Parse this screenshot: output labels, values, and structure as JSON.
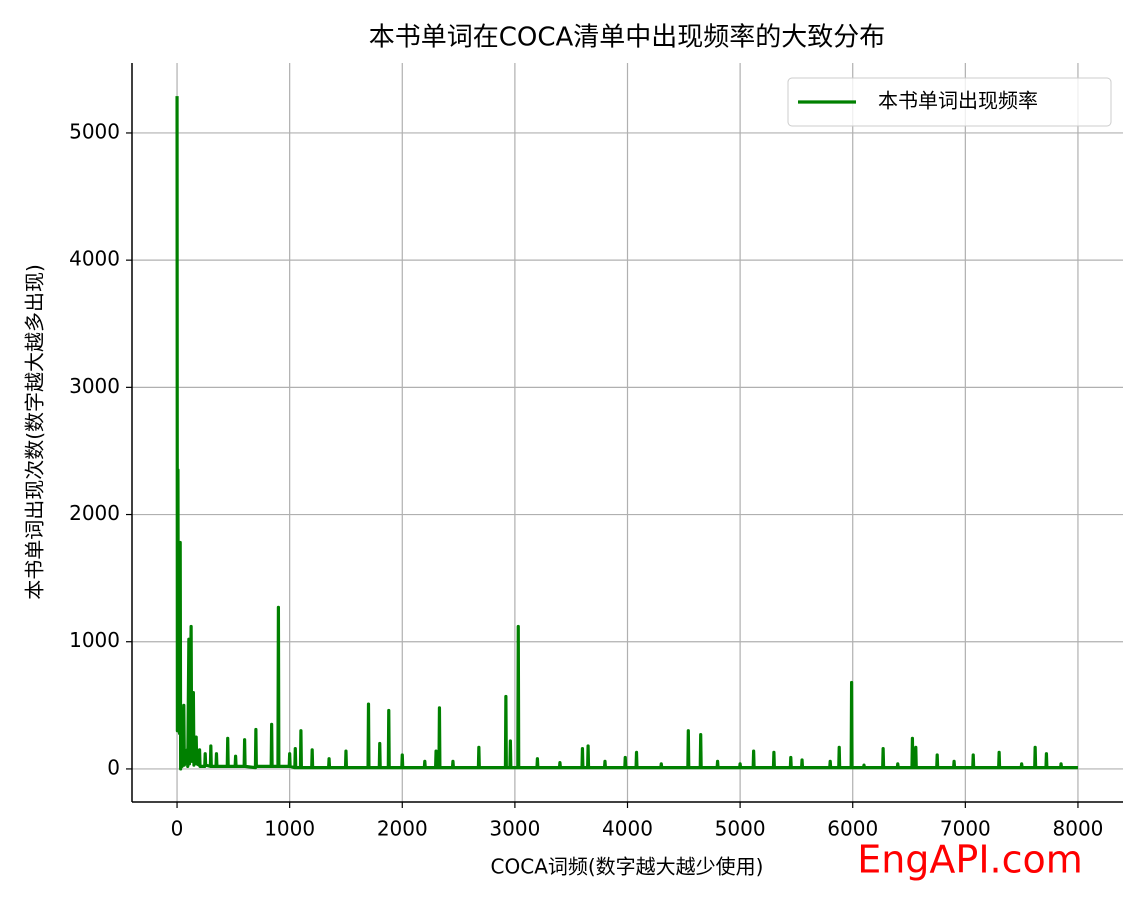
{
  "chart_data": {
    "type": "line",
    "title": "本书单词在COCA清单中出现频率的大致分布",
    "xlabel": "COCA词频(数字越大越少使用)",
    "ylabel": "本书单词出现次数(数字越大越多出现)",
    "annotation": "EngAPI.com",
    "legend": "upper right",
    "grid": true,
    "xlim": [
      -400,
      8400
    ],
    "ylim": [
      -260,
      5550
    ],
    "xticks": [
      0,
      1000,
      2000,
      3000,
      4000,
      5000,
      6000,
      7000,
      8000
    ],
    "yticks": [
      0,
      1000,
      2000,
      3000,
      4000,
      5000
    ],
    "x": [
      0,
      3,
      8,
      12,
      18,
      22,
      28,
      32,
      40,
      45,
      60,
      65,
      90,
      95,
      105,
      110,
      125,
      130,
      145,
      150,
      170,
      175,
      196,
      200,
      204,
      246,
      250,
      254,
      296,
      300,
      304,
      346,
      350,
      354,
      446,
      450,
      454,
      516,
      520,
      524,
      596,
      600,
      604,
      696,
      700,
      704,
      836,
      840,
      844,
      896,
      900,
      904,
      996,
      1000,
      1004,
      1046,
      1050,
      1054,
      1096,
      1100,
      1104,
      1196,
      1200,
      1204,
      1346,
      1350,
      1354,
      1496,
      1500,
      1504,
      1696,
      1700,
      1704,
      1796,
      1800,
      1804,
      1876,
      1880,
      1884,
      1996,
      2000,
      2004,
      2196,
      2200,
      2204,
      2296,
      2300,
      2304,
      2326,
      2330,
      2334,
      2446,
      2450,
      2454,
      2676,
      2680,
      2684,
      2916,
      2920,
      2924,
      2956,
      2960,
      2964,
      3026,
      3030,
      3034,
      3196,
      3200,
      3204,
      3396,
      3400,
      3404,
      3596,
      3600,
      3604,
      3646,
      3650,
      3654,
      3796,
      3800,
      3804,
      3976,
      3980,
      3984,
      4076,
      4080,
      4084,
      4296,
      4300,
      4304,
      4536,
      4540,
      4544,
      4646,
      4650,
      4654,
      4796,
      4800,
      4804,
      4996,
      5000,
      5004,
      5116,
      5120,
      5124,
      5296,
      5300,
      5304,
      5446,
      5450,
      5454,
      5546,
      5550,
      5554,
      5796,
      5800,
      5804,
      5876,
      5880,
      5884,
      5986,
      5990,
      5994,
      6096,
      6100,
      6104,
      6266,
      6270,
      6274,
      6396,
      6400,
      6404,
      6526,
      6530,
      6534,
      6556,
      6560,
      6564,
      6746,
      6750,
      6754,
      6896,
      6900,
      6904,
      7066,
      7070,
      7074,
      7296,
      7300,
      7304,
      7496,
      7500,
      7504,
      7616,
      7620,
      7624,
      7716,
      7720,
      7724,
      7846,
      7850,
      7854,
      8000
    ],
    "series": [
      {
        "name": "本书单词出现频率",
        "color": "#008000",
        "values": [
          5290,
          300,
          2350,
          400,
          800,
          280,
          1780,
          0,
          300,
          20,
          500,
          30,
          150,
          20,
          1020,
          40,
          1120,
          60,
          600,
          30,
          250,
          40,
          30,
          150,
          20,
          20,
          120,
          30,
          20,
          180,
          20,
          20,
          120,
          20,
          20,
          240,
          20,
          20,
          100,
          20,
          20,
          230,
          20,
          10,
          310,
          20,
          20,
          350,
          20,
          20,
          1270,
          20,
          20,
          120,
          20,
          10,
          160,
          10,
          10,
          300,
          10,
          10,
          150,
          10,
          10,
          80,
          10,
          10,
          140,
          10,
          10,
          510,
          10,
          10,
          200,
          10,
          10,
          460,
          10,
          10,
          110,
          10,
          10,
          60,
          10,
          10,
          140,
          10,
          10,
          480,
          10,
          10,
          60,
          10,
          10,
          170,
          10,
          10,
          570,
          10,
          10,
          220,
          10,
          10,
          1120,
          10,
          10,
          80,
          10,
          10,
          50,
          10,
          10,
          160,
          10,
          10,
          180,
          10,
          10,
          60,
          10,
          10,
          90,
          10,
          10,
          130,
          10,
          10,
          40,
          10,
          10,
          300,
          10,
          10,
          270,
          10,
          10,
          60,
          10,
          10,
          40,
          10,
          10,
          140,
          10,
          10,
          130,
          10,
          10,
          90,
          10,
          10,
          70,
          10,
          10,
          60,
          10,
          10,
          170,
          10,
          10,
          680,
          10,
          10,
          30,
          10,
          10,
          160,
          10,
          10,
          40,
          10,
          10,
          240,
          10,
          10,
          170,
          10,
          10,
          110,
          10,
          10,
          60,
          10,
          10,
          110,
          10,
          10,
          130,
          10,
          10,
          40,
          10,
          10,
          170,
          10,
          10,
          120,
          10,
          10,
          40,
          10,
          10
        ]
      }
    ]
  }
}
